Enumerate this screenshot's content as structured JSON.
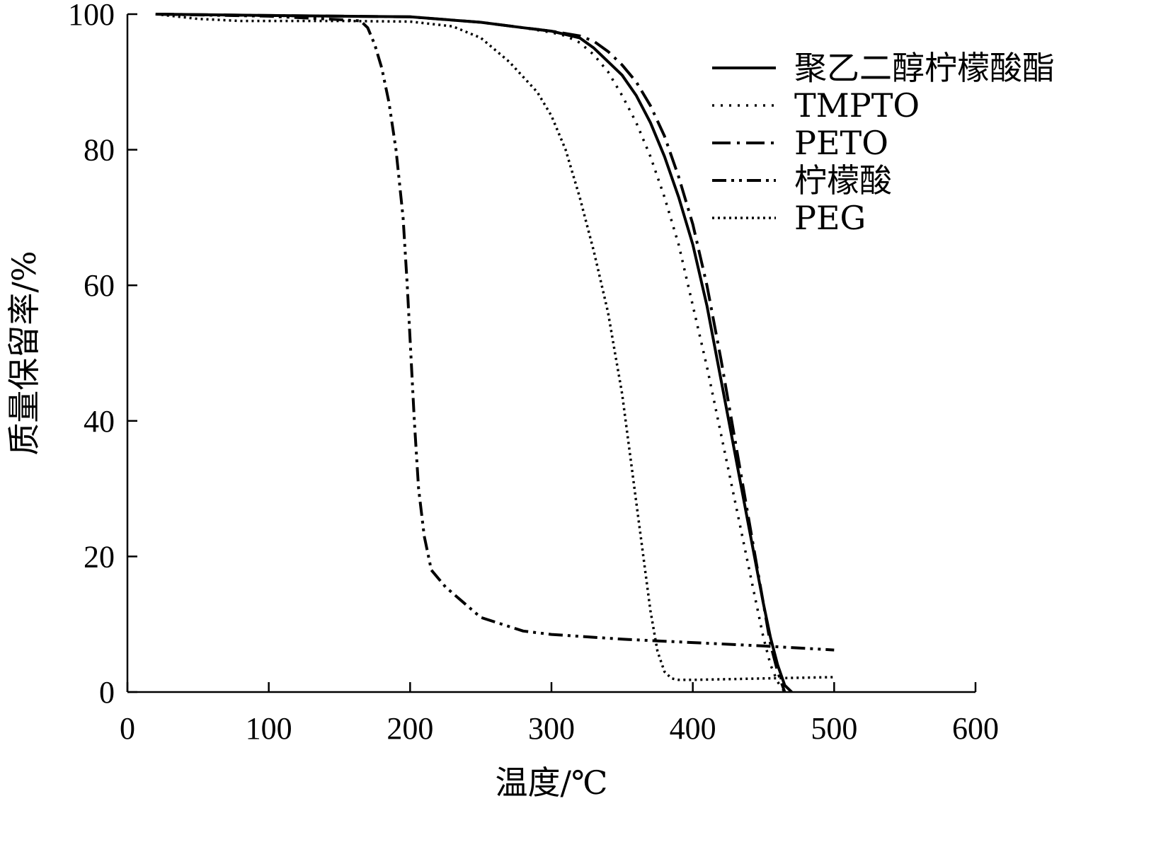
{
  "chart_data": {
    "type": "line",
    "xlabel": "温度/℃",
    "ylabel": "质量保留率/%",
    "xlim": [
      0,
      600
    ],
    "ylim": [
      0,
      100
    ],
    "xticks": [
      0,
      100,
      200,
      300,
      400,
      500,
      600
    ],
    "yticks": [
      0,
      20,
      40,
      60,
      80,
      100
    ],
    "grid": false,
    "legend_position": "top-right",
    "series": [
      {
        "name": "聚乙二醇柠檬酸酯",
        "style": "solid",
        "x": [
          20,
          100,
          200,
          250,
          280,
          300,
          320,
          330,
          340,
          350,
          360,
          370,
          380,
          390,
          400,
          410,
          420,
          430,
          440,
          450,
          455,
          460,
          465,
          470
        ],
        "y": [
          100,
          99.8,
          99.6,
          98.8,
          98.0,
          97.5,
          96.5,
          95.0,
          93.0,
          91.0,
          88.0,
          84.0,
          79.0,
          73.0,
          66.0,
          57.0,
          46.0,
          35.0,
          24.0,
          13.0,
          8.0,
          4.0,
          1.0,
          0.0
        ]
      },
      {
        "name": "TMPTO",
        "style": "dotted",
        "x": [
          20,
          100,
          200,
          250,
          280,
          300,
          310,
          320,
          330,
          340,
          350,
          360,
          370,
          380,
          390,
          400,
          410,
          420,
          430,
          440,
          450,
          455,
          460,
          465
        ],
        "y": [
          100,
          99.8,
          99.6,
          98.8,
          98.0,
          97.3,
          96.8,
          95.8,
          94.0,
          91.5,
          88.0,
          84.0,
          79.0,
          73.0,
          66.0,
          57.0,
          48.0,
          38.0,
          28.0,
          18.0,
          8.0,
          4.0,
          1.5,
          0.0
        ]
      },
      {
        "name": "PETO",
        "style": "dash-dot",
        "x": [
          20,
          100,
          200,
          250,
          280,
          300,
          320,
          330,
          340,
          350,
          360,
          370,
          380,
          390,
          400,
          410,
          420,
          430,
          440,
          450,
          455,
          460,
          465
        ],
        "y": [
          100,
          99.8,
          99.6,
          98.8,
          98.0,
          97.5,
          96.8,
          96.0,
          94.5,
          92.5,
          90.0,
          86.5,
          82.0,
          76.0,
          69.0,
          60.0,
          49.0,
          37.0,
          25.0,
          13.0,
          7.0,
          3.0,
          0.0
        ]
      },
      {
        "name": "柠檬酸",
        "style": "dash-dot-dot",
        "x": [
          20,
          100,
          150,
          165,
          170,
          175,
          180,
          185,
          190,
          195,
          198,
          200,
          203,
          206,
          210,
          215,
          225,
          250,
          280,
          300,
          350,
          400,
          450,
          500
        ],
        "y": [
          100,
          99.7,
          99.2,
          99.0,
          98.0,
          95.5,
          92.0,
          87.0,
          80.0,
          70.0,
          60.0,
          52.0,
          40.0,
          30.0,
          23.0,
          18.0,
          15.5,
          11.0,
          9.0,
          8.5,
          7.8,
          7.3,
          6.8,
          6.2
        ]
      },
      {
        "name": "PEG",
        "style": "dense-dotted",
        "x": [
          20,
          50,
          80,
          100,
          150,
          200,
          230,
          250,
          270,
          290,
          300,
          310,
          320,
          330,
          340,
          345,
          350,
          355,
          360,
          365,
          370,
          375,
          380,
          385,
          390,
          400,
          450,
          500
        ],
        "y": [
          100,
          99.3,
          99.0,
          99.0,
          99.0,
          98.9,
          98.2,
          96.5,
          93.0,
          88.5,
          85.0,
          80.0,
          73.0,
          65.0,
          56.0,
          50.0,
          44.0,
          36.0,
          28.0,
          20.0,
          12.0,
          6.0,
          3.0,
          2.0,
          1.8,
          1.8,
          2.0,
          2.2
        ]
      }
    ]
  }
}
